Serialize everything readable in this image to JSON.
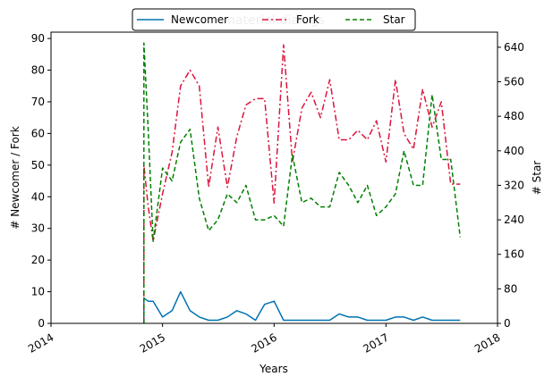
{
  "chart_data": {
    "type": "line",
    "title": "material-dialogs",
    "xlabel": "Years",
    "ylabel_left": "# Newcomer / Fork",
    "ylabel_right": "# Star",
    "x_ticks": [
      "2014",
      "2015",
      "2016",
      "2017",
      "2018"
    ],
    "x_tick_values": [
      "2014-01-01",
      "2015-01-01",
      "2016-01-01",
      "2017-01-01",
      "2018-01-01"
    ],
    "y_left_ticks": [
      0,
      10,
      20,
      30,
      40,
      50,
      60,
      70,
      80,
      90
    ],
    "y_right_ticks": [
      0,
      80,
      160,
      240,
      320,
      400,
      480,
      560,
      640
    ],
    "xlim": [
      "2014-01-01",
      "2018-01-01"
    ],
    "ylim_left": [
      0,
      92
    ],
    "ylim_right": [
      0,
      675
    ],
    "legend_placement": "top-center",
    "x": [
      "2014-11-01",
      "2014-11-15",
      "2014-12-01",
      "2015-01-01",
      "2015-02-01",
      "2015-03-01",
      "2015-04-01",
      "2015-05-01",
      "2015-06-01",
      "2015-07-01",
      "2015-08-01",
      "2015-09-01",
      "2015-10-01",
      "2015-11-01",
      "2015-12-01",
      "2016-01-01",
      "2016-02-01",
      "2016-03-01",
      "2016-04-01",
      "2016-05-01",
      "2016-06-01",
      "2016-07-01",
      "2016-08-01",
      "2016-09-01",
      "2016-10-01",
      "2016-11-01",
      "2016-12-01",
      "2017-01-01",
      "2017-02-01",
      "2017-03-01",
      "2017-04-01",
      "2017-05-01",
      "2017-06-01",
      "2017-07-01",
      "2017-08-01",
      "2017-09-01"
    ],
    "series": [
      {
        "name": "Newcomer",
        "axis": "left",
        "color": "#0072b2",
        "style": "solid",
        "values": [
          8,
          7,
          7,
          2,
          4,
          10,
          4,
          2,
          1,
          1,
          2,
          4,
          3,
          1,
          6,
          7,
          1,
          1,
          1,
          1,
          1,
          1,
          3,
          2,
          2,
          1,
          1,
          1,
          2,
          2,
          1,
          2,
          1,
          1,
          1,
          1
        ]
      },
      {
        "name": "Fork",
        "axis": "left",
        "color": "#dc143c",
        "style": "dashdot",
        "values": [
          50,
          37,
          26,
          41,
          54,
          75,
          80,
          75,
          43,
          62,
          43,
          59,
          69,
          71,
          71,
          38,
          88,
          51,
          68,
          73,
          65,
          77,
          58,
          58,
          61,
          58,
          64,
          51,
          77,
          60,
          55,
          74,
          62,
          70,
          44,
          44
        ]
      },
      {
        "name": "Star",
        "axis": "right",
        "color": "#008000",
        "style": "dashed",
        "values": [
          650,
          450,
          190,
          360,
          330,
          420,
          450,
          290,
          215,
          240,
          300,
          280,
          320,
          240,
          240,
          250,
          225,
          390,
          280,
          290,
          270,
          270,
          350,
          320,
          280,
          320,
          250,
          270,
          300,
          400,
          320,
          320,
          530,
          380,
          380,
          200
        ]
      }
    ]
  }
}
